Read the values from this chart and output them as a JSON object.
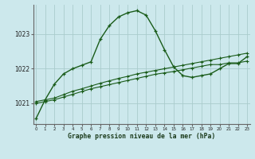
{
  "xlabel": "Graphe pression niveau de la mer (hPa)",
  "bg_color": "#cce8ec",
  "grid_color": "#aacccc",
  "line_color": "#1a5c1a",
  "x": [
    0,
    1,
    2,
    3,
    4,
    5,
    6,
    7,
    8,
    9,
    10,
    11,
    12,
    13,
    14,
    15,
    16,
    17,
    18,
    19,
    20,
    21,
    22,
    23
  ],
  "y_main": [
    1020.55,
    1021.1,
    1021.55,
    1021.85,
    1022.0,
    1022.1,
    1022.2,
    1022.85,
    1023.25,
    1023.5,
    1023.62,
    1023.68,
    1023.55,
    1023.1,
    1022.55,
    1022.05,
    1021.8,
    1021.75,
    1021.8,
    1021.85,
    1022.0,
    1022.15,
    1022.15,
    1022.35
  ],
  "y_line2": [
    1021.05,
    1021.1,
    1021.15,
    1021.25,
    1021.35,
    1021.42,
    1021.5,
    1021.58,
    1021.65,
    1021.72,
    1021.78,
    1021.85,
    1021.9,
    1021.95,
    1022.0,
    1022.05,
    1022.1,
    1022.15,
    1022.2,
    1022.25,
    1022.3,
    1022.35,
    1022.4,
    1022.45
  ],
  "y_line3": [
    1021.0,
    1021.05,
    1021.1,
    1021.18,
    1021.26,
    1021.34,
    1021.42,
    1021.48,
    1021.54,
    1021.6,
    1021.66,
    1021.72,
    1021.78,
    1021.84,
    1021.88,
    1021.92,
    1021.97,
    1022.02,
    1022.07,
    1022.12,
    1022.12,
    1022.17,
    1022.17,
    1022.22
  ],
  "ylim": [
    1020.4,
    1023.85
  ],
  "yticks": [
    1021,
    1022,
    1023
  ],
  "xticks": [
    0,
    1,
    2,
    3,
    4,
    5,
    6,
    7,
    8,
    9,
    10,
    11,
    12,
    13,
    14,
    15,
    16,
    17,
    18,
    19,
    20,
    21,
    22,
    23
  ],
  "marker_size": 3.5,
  "lw_main": 1.0,
  "lw_secondary": 0.8
}
